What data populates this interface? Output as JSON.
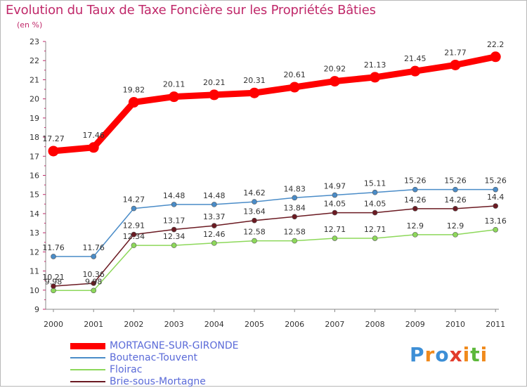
{
  "chart_data": {
    "type": "line",
    "title": "Evolution du Taux de Taxe Foncière sur les Propriétés Bâties",
    "ylabel": "(en %)",
    "xlabel": "",
    "x": [
      "2000",
      "2001",
      "2002",
      "2003",
      "2004",
      "2005",
      "2006",
      "2007",
      "2008",
      "2009",
      "2010",
      "2011"
    ],
    "ylim": [
      9,
      23
    ],
    "yticks": [
      "9",
      "10",
      "11",
      "12",
      "13",
      "14",
      "15",
      "16",
      "17",
      "18",
      "19",
      "20",
      "21",
      "22",
      "23"
    ],
    "series": [
      {
        "name": "MORTAGNE-SUR-GIRONDE",
        "color": "#ff0000",
        "values": [
          17.27,
          17.46,
          19.82,
          20.11,
          20.21,
          20.31,
          20.61,
          20.92,
          21.13,
          21.45,
          21.77,
          22.2
        ],
        "labels": [
          "17.27",
          "17.46",
          "19.82",
          "20.11",
          "20.21",
          "20.31",
          "20.61",
          "20.92",
          "21.13",
          "21.45",
          "21.77",
          "22.2"
        ]
      },
      {
        "name": "Boutenac-Touvent",
        "color": "#4a8cc8",
        "values": [
          11.76,
          11.76,
          14.27,
          14.48,
          14.48,
          14.62,
          14.83,
          14.97,
          15.11,
          15.26,
          15.26,
          15.26
        ],
        "labels": [
          "11.76",
          "11.76",
          "14.27",
          "14.48",
          "14.48",
          "14.62",
          "14.83",
          "14.97",
          "15.11",
          "15.26",
          "15.26",
          "15.26"
        ]
      },
      {
        "name": "Floirac",
        "color": "#8dd85a",
        "values": [
          9.98,
          9.98,
          12.34,
          12.34,
          12.46,
          12.58,
          12.58,
          12.71,
          12.71,
          12.9,
          12.9,
          13.16
        ],
        "labels": [
          "9.98",
          "9.98",
          "12.34",
          "12.34",
          "12.46",
          "12.58",
          "12.58",
          "12.71",
          "12.71",
          "12.9",
          "12.9",
          "13.16"
        ]
      },
      {
        "name": "Brie-sous-Mortagne",
        "color": "#6b1a22",
        "values": [
          10.21,
          10.36,
          12.91,
          13.17,
          13.37,
          13.64,
          13.84,
          14.05,
          14.05,
          14.26,
          14.26,
          14.4
        ],
        "labels": [
          "10.21",
          "10.36",
          "12.91",
          "13.17",
          "13.37",
          "13.64",
          "13.84",
          "14.05",
          "14.05",
          "14.26",
          "14.26",
          "14.4"
        ]
      }
    ],
    "legend_position": "bottom-left"
  },
  "legend": [
    {
      "name": "MORTAGNE-SUR-GIRONDE",
      "color": "#ff0000",
      "text_color": "#5a6ad8",
      "weight": "main"
    },
    {
      "name": "Boutenac-Touvent",
      "color": "#4a8cc8",
      "text_color": "#5a6ad8",
      "weight": "thin"
    },
    {
      "name": "Floirac",
      "color": "#8dd85a",
      "text_color": "#5a6ad8",
      "weight": "thin"
    },
    {
      "name": "Brie-sous-Mortagne",
      "color": "#6b1a22",
      "text_color": "#5a6ad8",
      "weight": "thin"
    }
  ],
  "logo": {
    "letters": [
      "P",
      "r",
      "o",
      "x",
      "i",
      "t",
      "i"
    ],
    "colors": [
      "#3d8fd6",
      "#f08a1c",
      "#3d8fd6",
      "#e23c2c",
      "#f08a1c",
      "#5cb83a",
      "#f08a1c"
    ]
  }
}
